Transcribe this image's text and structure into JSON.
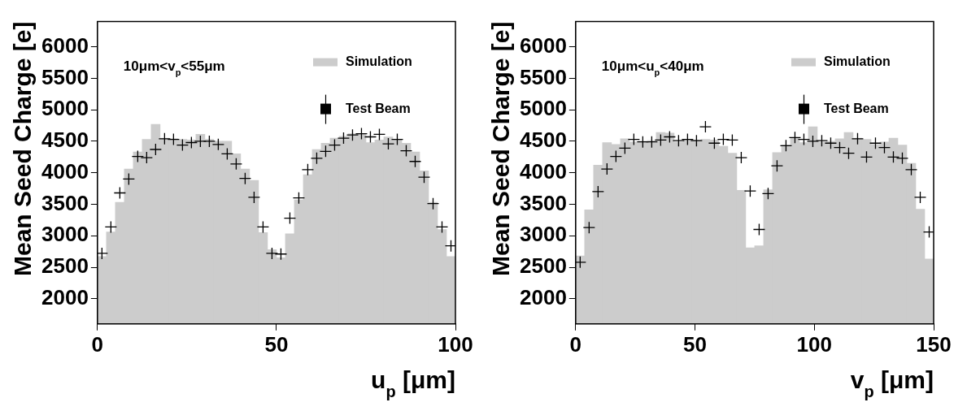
{
  "chart_data": [
    {
      "type": "histogram",
      "xlabel": "u$_{p}$ [μm]",
      "ylabel": "Mean Seed Charge [e]",
      "annotations": [
        "10μm<v$_{p}$<55μm"
      ],
      "xlim": [
        0,
        100
      ],
      "xticks": [
        0,
        50,
        100
      ],
      "ylim": [
        1600,
        6400
      ],
      "yticks": [
        2000,
        2500,
        3000,
        3500,
        4000,
        4500,
        5000,
        5500,
        6000
      ],
      "legend": "top right",
      "series": [
        {
          "name": "Simulation",
          "color": "#cccccc",
          "bins": [
            0,
            2.5,
            5,
            7.5,
            10,
            12.5,
            15,
            17.5,
            20,
            22.5,
            25,
            27.5,
            30,
            32.5,
            35,
            37.5,
            40,
            42.5,
            45,
            47.5,
            50,
            52.5,
            55,
            57.5,
            60,
            62.5,
            65,
            67.5,
            70,
            72.5,
            75,
            77.5,
            80,
            82.5,
            85,
            87.5,
            90,
            92.5,
            95,
            97.5,
            100
          ],
          "values": [
            2670,
            3060,
            3530,
            4060,
            4330,
            4530,
            4770,
            4550,
            4540,
            4530,
            4520,
            4610,
            4530,
            4500,
            4500,
            4300,
            4060,
            3880,
            3050,
            2780,
            2650,
            3030,
            3570,
            3970,
            4370,
            4470,
            4550,
            4580,
            4620,
            4610,
            4480,
            4520,
            4570,
            4520,
            4470,
            4330,
            4030,
            3530,
            3100,
            2670
          ]
        },
        {
          "name": "Test Beam",
          "type": "scatter",
          "color": "#000000",
          "marker": "cross",
          "x": [
            1.25,
            3.75,
            6.25,
            8.75,
            11.25,
            13.75,
            16.25,
            18.75,
            21.25,
            23.75,
            26.25,
            28.75,
            31.25,
            33.75,
            36.25,
            38.75,
            41.25,
            43.75,
            46.25,
            48.75,
            51.25,
            53.75,
            56.25,
            58.75,
            61.25,
            63.75,
            66.25,
            68.75,
            71.25,
            73.75,
            76.25,
            78.75,
            81.25,
            83.75,
            86.25,
            88.75,
            91.25,
            93.75,
            96.25,
            98.75
          ],
          "values": [
            2720,
            3140,
            3680,
            3900,
            4260,
            4240,
            4370,
            4540,
            4530,
            4440,
            4480,
            4500,
            4500,
            4450,
            4300,
            4140,
            3910,
            3610,
            3140,
            2720,
            2710,
            3280,
            3600,
            4050,
            4230,
            4340,
            4440,
            4550,
            4600,
            4620,
            4570,
            4610,
            4460,
            4530,
            4350,
            4180,
            3930,
            3510,
            3140,
            2840
          ]
        }
      ]
    },
    {
      "type": "histogram",
      "xlabel": "v$_{p}$ [μm]",
      "ylabel": "Mean Seed Charge [e]",
      "annotations": [
        "10μm<u$_{p}$<40μm"
      ],
      "xlim": [
        0,
        150
      ],
      "xticks": [
        0,
        50,
        100,
        150
      ],
      "ylim": [
        1600,
        6400
      ],
      "yticks": [
        2000,
        2500,
        3000,
        3500,
        4000,
        4500,
        5000,
        5500,
        6000
      ],
      "legend": "top right",
      "series": [
        {
          "name": "Simulation",
          "color": "#cccccc",
          "bins": [
            0,
            3.75,
            7.5,
            11.25,
            15,
            18.75,
            22.5,
            26.25,
            30,
            33.75,
            37.5,
            41.25,
            45,
            48.75,
            52.5,
            56.25,
            60,
            63.75,
            67.5,
            71.25,
            75,
            78.75,
            82.5,
            86.25,
            90,
            93.75,
            97.5,
            101.25,
            105,
            108.75,
            112.5,
            116.25,
            120,
            123.75,
            127.5,
            131.25,
            135,
            138.75,
            142.5,
            146.25,
            150
          ],
          "values": [
            2680,
            3410,
            4120,
            4480,
            4450,
            4540,
            4490,
            4500,
            4510,
            4640,
            4630,
            4490,
            4530,
            4520,
            4530,
            4520,
            4420,
            4310,
            3720,
            2810,
            2840,
            3730,
            4320,
            4440,
            4550,
            4480,
            4730,
            4490,
            4500,
            4540,
            4640,
            4550,
            4530,
            4450,
            4490,
            4550,
            4440,
            4150,
            3420,
            2630
          ]
        },
        {
          "name": "Test Beam",
          "type": "scatter",
          "color": "#000000",
          "marker": "cross",
          "x": [
            1.875,
            5.625,
            9.375,
            13.125,
            16.875,
            20.625,
            24.375,
            28.125,
            31.875,
            35.625,
            39.375,
            43.125,
            46.875,
            50.625,
            54.375,
            58.125,
            61.875,
            65.625,
            69.375,
            73.125,
            76.875,
            80.625,
            84.375,
            88.125,
            91.875,
            95.625,
            99.375,
            103.125,
            106.875,
            110.625,
            114.375,
            118.125,
            121.875,
            125.625,
            129.375,
            133.125,
            136.875,
            140.625,
            144.375,
            148.125
          ],
          "values": [
            2580,
            3130,
            3700,
            4060,
            4260,
            4390,
            4530,
            4490,
            4490,
            4520,
            4570,
            4510,
            4530,
            4510,
            4730,
            4470,
            4530,
            4520,
            4240,
            3710,
            3100,
            3670,
            4110,
            4430,
            4560,
            4530,
            4500,
            4510,
            4470,
            4400,
            4310,
            4540,
            4250,
            4470,
            4400,
            4250,
            4230,
            4050,
            3610,
            3060
          ]
        }
      ]
    }
  ]
}
